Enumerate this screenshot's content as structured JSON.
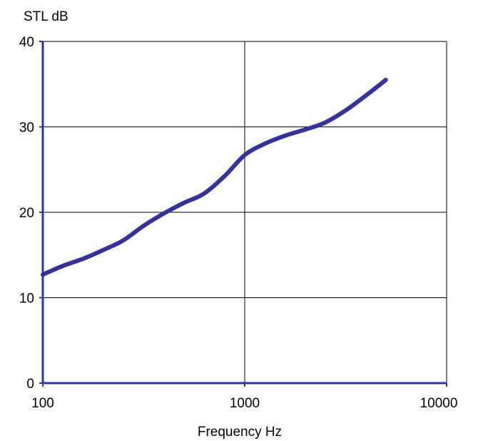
{
  "chart_data": {
    "type": "line",
    "ylabel": "STL dB",
    "xlabel": "Frequency Hz",
    "x_scale": "log",
    "xlim": [
      100,
      10000
    ],
    "ylim": [
      0,
      40
    ],
    "x_ticks": [
      "100",
      "1000",
      "10000"
    ],
    "y_ticks": [
      "0",
      "10",
      "20",
      "30",
      "40"
    ],
    "grid": true,
    "colors": {
      "line": "#33339a",
      "axis": "#33339a",
      "grid": "#000000"
    },
    "series": [
      {
        "x": [
          100,
          125,
          160,
          200,
          250,
          315,
          400,
          500,
          630,
          800,
          1000,
          1250,
          1600,
          2000,
          2500,
          3150,
          4000,
          5000
        ],
        "y": [
          12.7,
          13.7,
          14.6,
          15.6,
          16.7,
          18.4,
          19.9,
          21.1,
          22.2,
          24.3,
          26.7,
          28.0,
          29.0,
          29.7,
          30.5,
          31.9,
          33.7,
          35.5
        ]
      }
    ]
  }
}
